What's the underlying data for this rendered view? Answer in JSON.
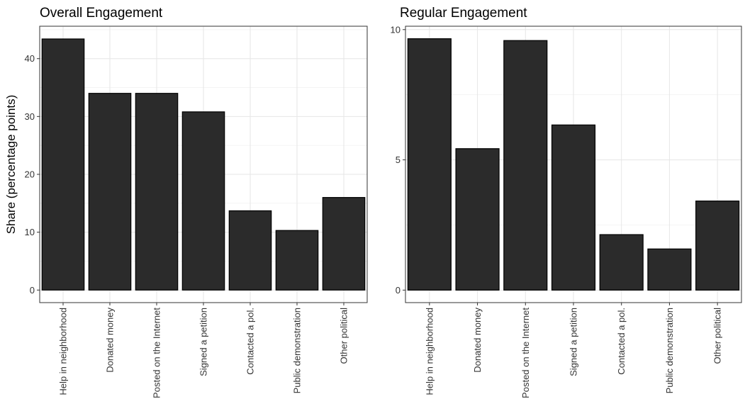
{
  "chart_data": [
    {
      "type": "bar",
      "title": "Overall Engagement",
      "ylabel": "Share (percentage points)",
      "xlabel": "",
      "categories": [
        "Help in neighborhood",
        "Donated money",
        "Posted on the Internet",
        "Signed a petition",
        "Contacted a pol.",
        "Public demonstration",
        "Other political"
      ],
      "values": [
        43.4,
        34.0,
        34.0,
        30.8,
        13.7,
        10.3,
        16.0
      ],
      "ylim": [
        -2.17,
        45.6
      ],
      "yticks": [
        0,
        10,
        20,
        30,
        40
      ],
      "ytick_labels": [
        "0",
        "10",
        "20",
        "30",
        "40"
      ],
      "bar_color": "#2b2b2b",
      "grid": true
    },
    {
      "type": "bar",
      "title": "Regular Engagement",
      "ylabel": "",
      "xlabel": "",
      "categories": [
        "Help in neighborhood",
        "Donated money",
        "Posted on the Internet",
        "Signed a petition",
        "Contacted a pol.",
        "Public demonstration",
        "Other political"
      ],
      "values": [
        9.65,
        5.43,
        9.58,
        6.34,
        2.13,
        1.58,
        3.42
      ],
      "ylim": [
        -0.48,
        10.13
      ],
      "yticks": [
        0,
        5,
        10
      ],
      "ytick_labels": [
        "0",
        "5",
        "10"
      ],
      "bar_color": "#2b2b2b",
      "grid": true
    }
  ]
}
